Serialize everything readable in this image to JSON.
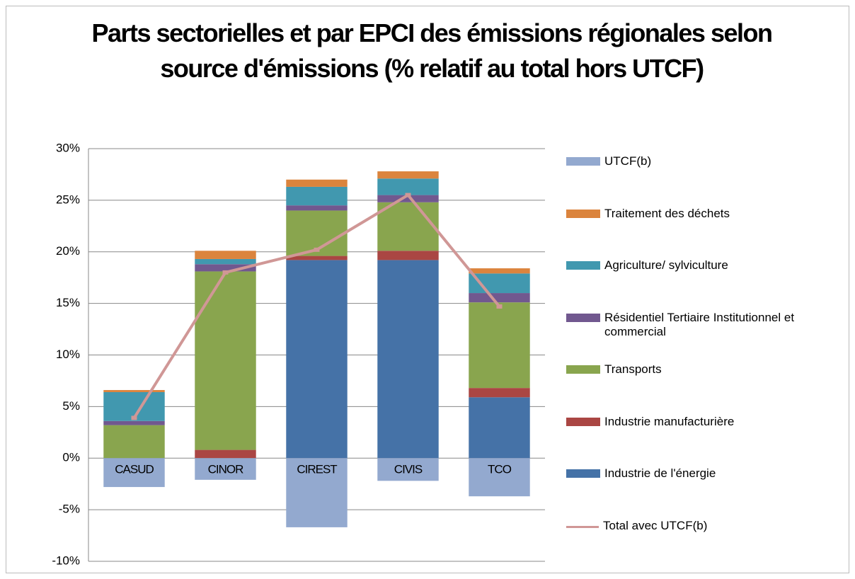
{
  "chart_data": {
    "type": "bar",
    "title": "Parts sectorielles et par EPCI des émissions régionales selon source d'émissions (% relatif au total hors UTCF)",
    "categories": [
      "CASUD",
      "CINOR",
      "CIREST",
      "CIVIS",
      "TCO"
    ],
    "stacked": true,
    "series": [
      {
        "name": "Industrie de l'énergie",
        "color": "#4572a7",
        "values": [
          0,
          0,
          19.2,
          19.2,
          5.9
        ]
      },
      {
        "name": "Industrie manufacturière",
        "color": "#aa4643",
        "values": [
          0,
          0.8,
          0.4,
          0.9,
          0.9
        ]
      },
      {
        "name": "Transports",
        "color": "#89a54e",
        "values": [
          3.2,
          17.3,
          4.4,
          4.7,
          8.3
        ]
      },
      {
        "name": "Résidentiel Tertiaire Institutionnel et commercial",
        "color": "#71588f",
        "values": [
          0.4,
          0.7,
          0.5,
          0.7,
          0.9
        ]
      },
      {
        "name": "Agriculture/ sylviculture",
        "color": "#4198af",
        "values": [
          2.8,
          0.5,
          1.8,
          1.6,
          1.9
        ]
      },
      {
        "name": "Traitement des déchets",
        "color": "#db843d",
        "values": [
          0.2,
          0.8,
          0.7,
          0.7,
          0.5
        ]
      },
      {
        "name": "UTCF(b)",
        "color": "#93a9cf",
        "values": [
          -2.8,
          -2.1,
          -6.7,
          -2.2,
          -3.7
        ]
      },
      {
        "name": "Total avec UTCF(b)",
        "color": "#d09796",
        "type": "line",
        "values": [
          3.9,
          18.0,
          20.2,
          25.5,
          14.7
        ]
      }
    ],
    "ylim": [
      -10,
      30
    ],
    "yticks": [
      {
        "value": -10,
        "label": "-10%"
      },
      {
        "value": -5,
        "label": "-5%"
      },
      {
        "value": 0,
        "label": "0%"
      },
      {
        "value": 5,
        "label": "5%"
      },
      {
        "value": 10,
        "label": "10%"
      },
      {
        "value": 15,
        "label": "15%"
      },
      {
        "value": 20,
        "label": "20%"
      },
      {
        "value": 25,
        "label": "25%"
      },
      {
        "value": 30,
        "label": "30%"
      }
    ],
    "grid": true,
    "legend": "right"
  }
}
